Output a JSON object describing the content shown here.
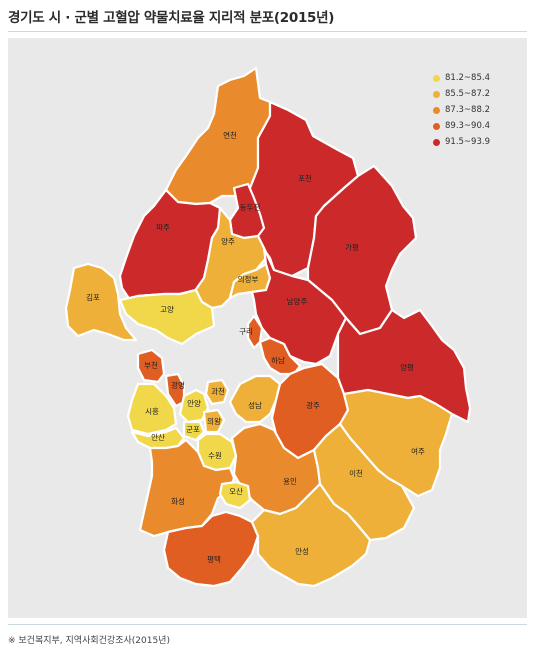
{
  "title": "경기도 시 · 군별 고혈압 약물치료율 지리적 분포(2015년)",
  "legend": [
    {
      "label": "81.2~85.4",
      "color": "#f0d84a"
    },
    {
      "label": "85.5~87.2",
      "color": "#eeb038"
    },
    {
      "label": "87.3~88.2",
      "color": "#e98a2c"
    },
    {
      "label": "89.3~90.4",
      "color": "#e15e22"
    },
    {
      "label": "91.5~93.9",
      "color": "#cc2a2a"
    }
  ],
  "regions": {
    "yeoncheon": {
      "name": "연천",
      "class": 2
    },
    "pocheon": {
      "name": "포천",
      "class": 4
    },
    "dongducheon": {
      "name": "동두천",
      "class": 4
    },
    "paju": {
      "name": "파주",
      "class": 4
    },
    "yangju": {
      "name": "양주",
      "class": 1
    },
    "gapyeong": {
      "name": "가평",
      "class": 4
    },
    "uijeongbu": {
      "name": "의정부",
      "class": 1
    },
    "gimpo": {
      "name": "김포",
      "class": 1
    },
    "goyang": {
      "name": "고양",
      "class": 0
    },
    "namyangju": {
      "name": "남양주",
      "class": 4
    },
    "guri": {
      "name": "구리",
      "class": 3
    },
    "hanam": {
      "name": "하남",
      "class": 3
    },
    "yangpyeong": {
      "name": "양평",
      "class": 4
    },
    "bucheon": {
      "name": "부천",
      "class": 3
    },
    "gwangmyeong": {
      "name": "광명",
      "class": 3
    },
    "siheung": {
      "name": "시흥",
      "class": 0
    },
    "anyang": {
      "name": "안양",
      "class": 0
    },
    "gwacheon": {
      "name": "과천",
      "class": 1
    },
    "seongnam": {
      "name": "성남",
      "class": 1
    },
    "gwangju": {
      "name": "광주",
      "class": 3
    },
    "gunpo": {
      "name": "군포",
      "class": 0
    },
    "uiwang": {
      "name": "의왕",
      "class": 1
    },
    "ansan": {
      "name": "안산",
      "class": 0
    },
    "suwon": {
      "name": "수원",
      "class": 0
    },
    "yeoju": {
      "name": "여주",
      "class": 1
    },
    "icheon": {
      "name": "이천",
      "class": 1
    },
    "yongin": {
      "name": "용인",
      "class": 2
    },
    "hwaseong": {
      "name": "화성",
      "class": 2
    },
    "osan": {
      "name": "오산",
      "class": 0
    },
    "pyeongtaek": {
      "name": "평택",
      "class": 3
    },
    "anseong": {
      "name": "안성",
      "class": 1
    }
  },
  "source": "※ 보건복지부, 지역사회건강조사(2015년)"
}
